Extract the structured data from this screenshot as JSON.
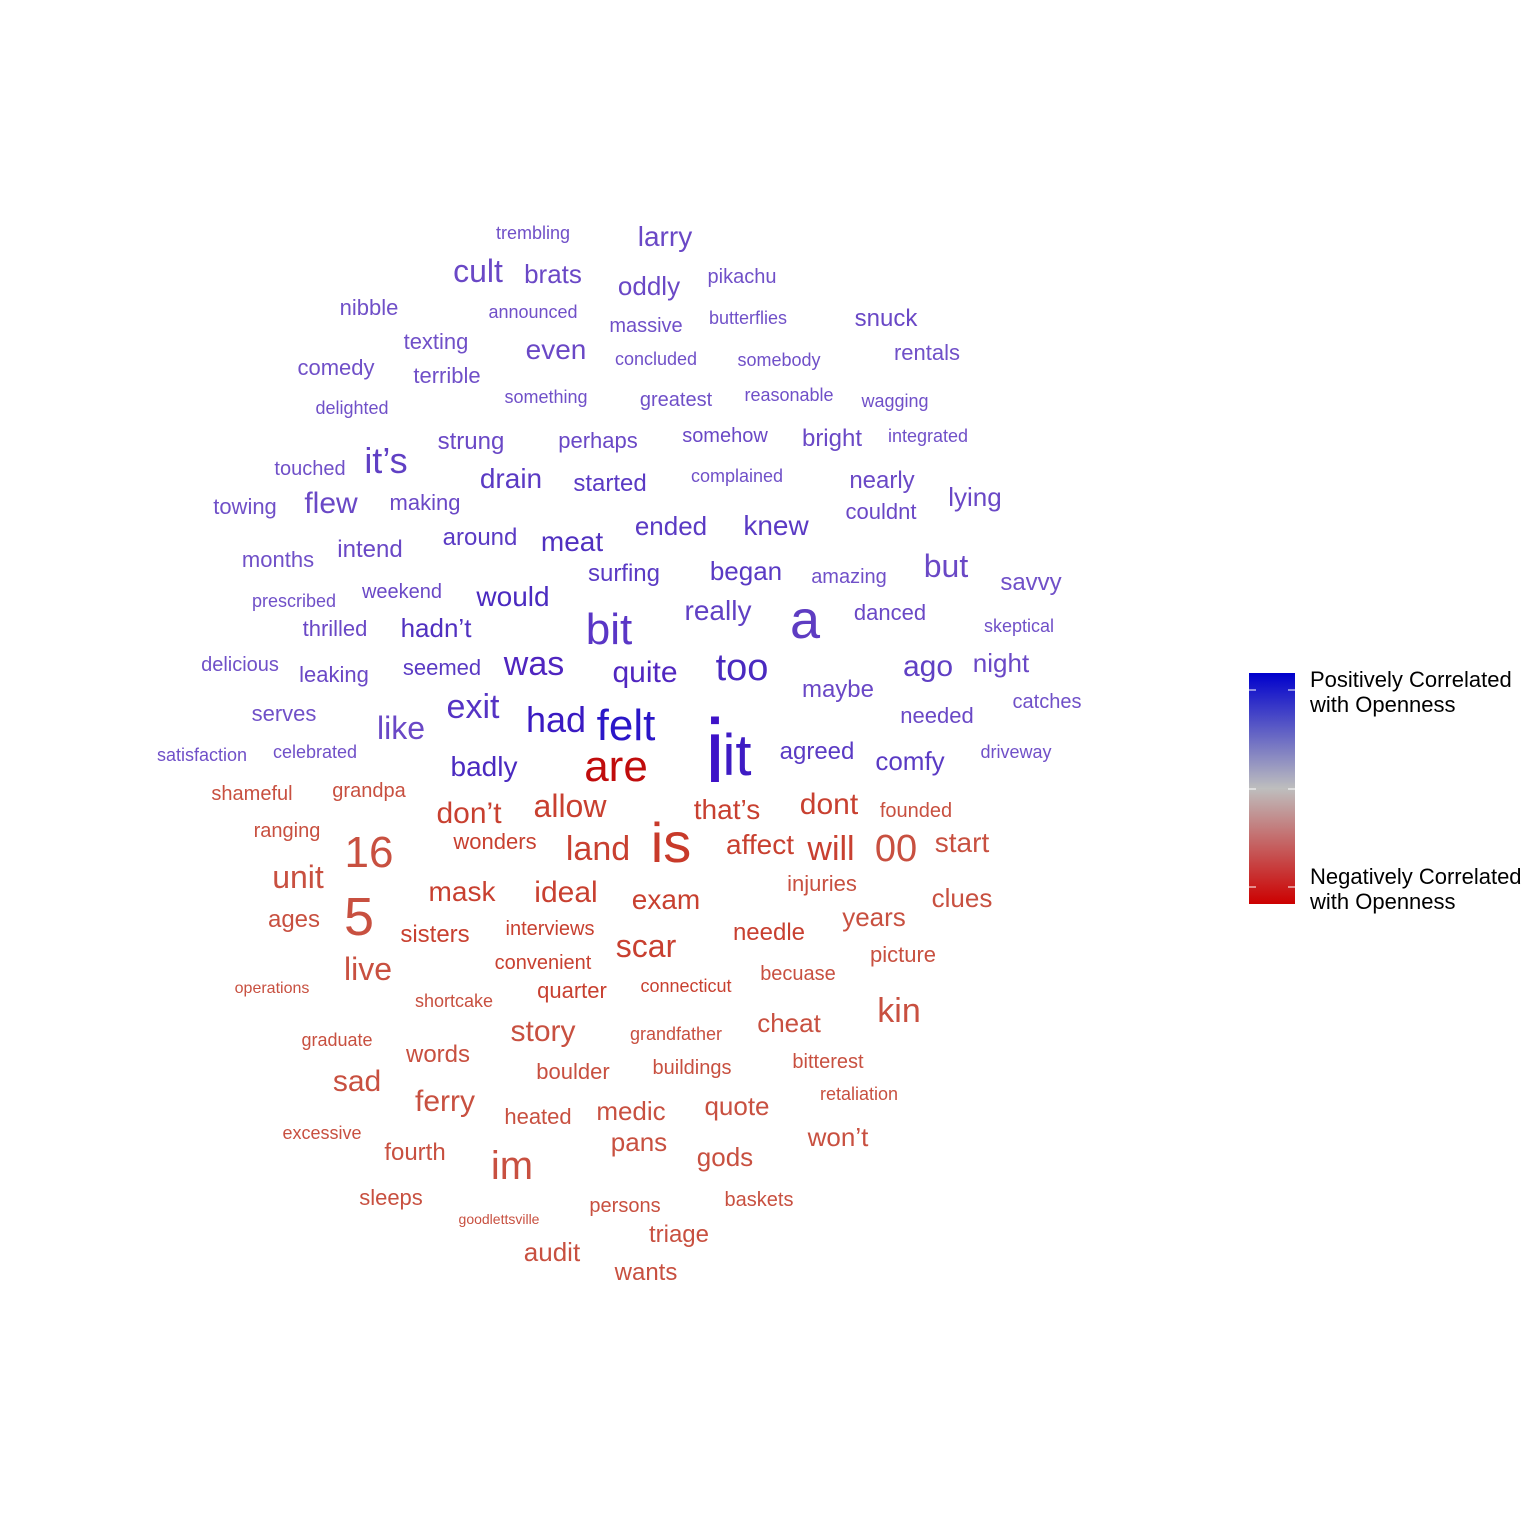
{
  "chart_data": {
    "type": "wordcloud",
    "legend": {
      "top_label": [
        "Positively Correlated",
        "with Openness"
      ],
      "bottom_label": [
        "Negatively Correlated",
        "with Openness"
      ],
      "top_color": "#0000CC",
      "mid_color": "#BEBEBE",
      "bottom_color": "#CC0000",
      "placement": "right"
    },
    "positive_words": [
      "i",
      "it",
      "felt",
      "a",
      "had",
      "too",
      "bit",
      "was",
      "quite",
      "exit",
      "like",
      "but",
      "ago",
      "badly",
      "really",
      "comfy",
      "would",
      "hadn't",
      "it's",
      "agreed",
      "meat",
      "knew",
      "ended",
      "drain",
      "began",
      "maybe",
      "seemed",
      "surfing",
      "night",
      "cult",
      "larry",
      "even",
      "lying",
      "needed",
      "flew",
      "nearly",
      "around",
      "started",
      "intend",
      "leaking",
      "bright",
      "oddly",
      "strung",
      "snuck",
      "brats",
      "danced",
      "savvy",
      "couldnt",
      "making",
      "months",
      "serves",
      "perhaps",
      "amazing",
      "somehow",
      "rentals",
      "texting",
      "greatest",
      "massive",
      "nibble",
      "terrible",
      "thrilled",
      "catches",
      "comedy",
      "touched",
      "towing",
      "weekend",
      "celebrated",
      "driveway",
      "skeptical",
      "delicious",
      "pikachu",
      "wagging",
      "something",
      "concluded",
      "somebody",
      "butterflies",
      "complained",
      "reasonable",
      "trembling",
      "announced",
      "delighted",
      "prescribed",
      "integrated",
      "satisfaction"
    ],
    "negative_words": [
      "are",
      "is",
      "5",
      "16",
      "land",
      "im",
      "will",
      "00",
      "allow",
      "dont",
      "that's",
      "don't",
      "unit",
      "ideal",
      "scar",
      "kin",
      "affect",
      "exam",
      "mask",
      "start",
      "clues",
      "story",
      "live",
      "sad",
      "ferry",
      "years",
      "needle",
      "cheat",
      "ages",
      "sisters",
      "quote",
      "medic",
      "pans",
      "won't",
      "gods",
      "words",
      "fourth",
      "wonders",
      "audit",
      "wants",
      "triage",
      "quarter",
      "injuries",
      "picture",
      "interviews",
      "grandpa",
      "ranging",
      "heated",
      "boulder",
      "sleeps",
      "persons",
      "convenient",
      "becuase",
      "bitterest",
      "buildings",
      "shameful",
      "founded",
      "connecticut",
      "shortcake",
      "graduate",
      "baskets",
      "grandfather",
      "excessive",
      "retaliation",
      "operations",
      "goodlettsville"
    ]
  }
}
